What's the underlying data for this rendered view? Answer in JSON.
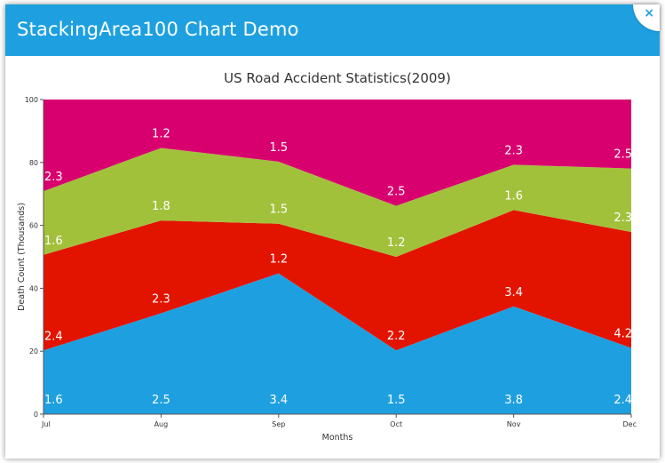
{
  "window": {
    "title": "StackingArea100 Chart Demo",
    "close_glyph": "×"
  },
  "chart_data": {
    "type": "area",
    "stacking": "100%",
    "title": "US Road Accident Statistics(2009)",
    "xlabel": "Months",
    "ylabel": "Death Count (Thousands)",
    "categories": [
      "Jul",
      "Aug",
      "Sep",
      "Oct",
      "Nov",
      "Dec"
    ],
    "ylim": [
      0,
      100
    ],
    "yticks": [
      0,
      20,
      40,
      60,
      80,
      100
    ],
    "grid": false,
    "legend": "none",
    "series": [
      {
        "values": [
          1.6,
          2.5,
          3.4,
          1.5,
          3.8,
          2.4
        ],
        "color": "#1ea0e0"
      },
      {
        "values": [
          2.4,
          2.3,
          1.2,
          2.2,
          3.4,
          4.2
        ],
        "color": "#e21400"
      },
      {
        "values": [
          1.6,
          1.8,
          1.5,
          1.2,
          1.6,
          2.3
        ],
        "color": "#a2c13b"
      },
      {
        "values": [
          2.3,
          1.2,
          1.5,
          2.5,
          2.3,
          2.5
        ],
        "color": "#d8006f"
      }
    ]
  }
}
